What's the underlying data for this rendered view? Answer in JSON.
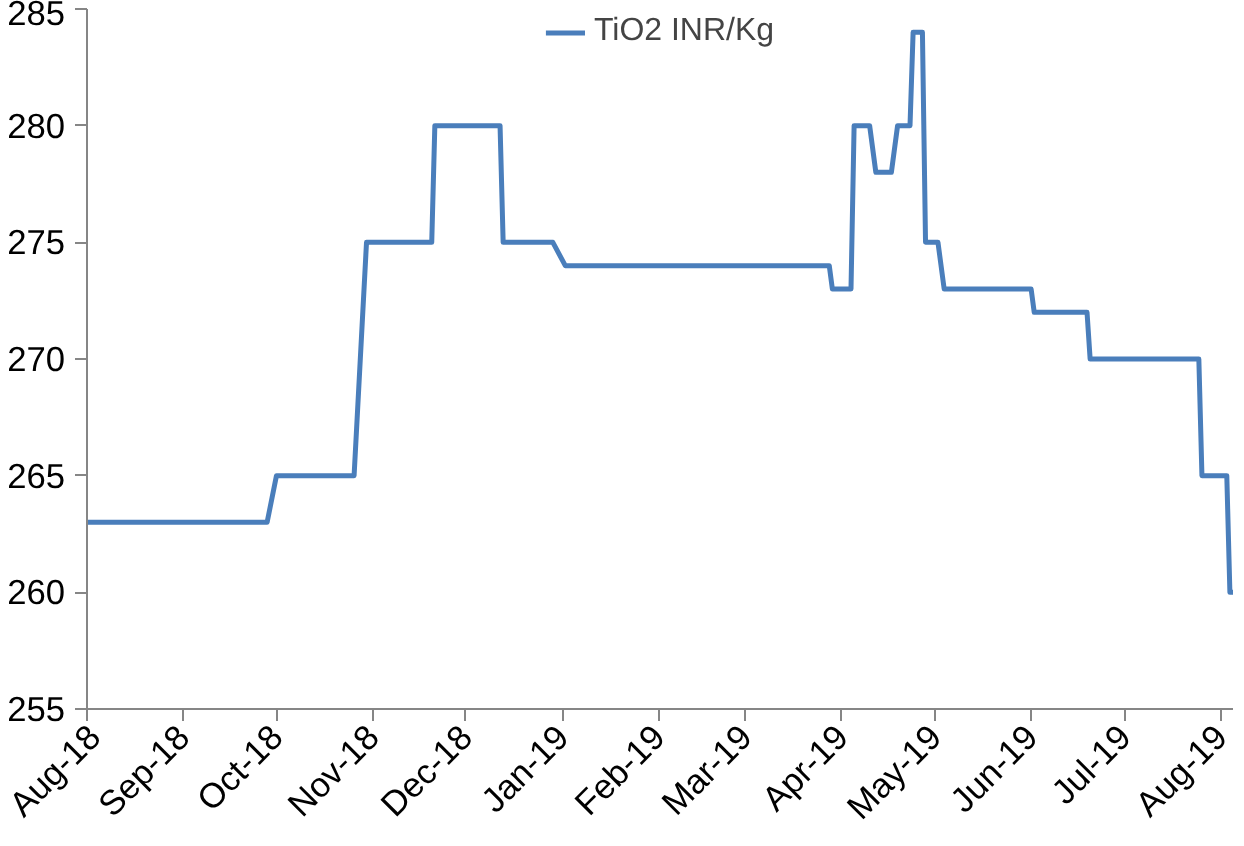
{
  "chart_data": {
    "type": "line",
    "x": [
      "2018-08-01",
      "2018-09-28",
      "2018-10-01",
      "2018-10-26",
      "2018-10-30",
      "2018-11-20",
      "2018-11-21",
      "2018-12-12",
      "2018-12-13",
      "2018-12-29",
      "2019-01-02",
      "2019-03-28",
      "2019-03-29",
      "2019-04-04",
      "2019-04-05",
      "2019-04-10",
      "2019-04-12",
      "2019-04-17",
      "2019-04-19",
      "2019-04-23",
      "2019-04-24",
      "2019-04-27",
      "2019-04-28",
      "2019-05-02",
      "2019-05-04",
      "2019-06-01",
      "2019-06-02",
      "2019-06-19",
      "2019-06-20",
      "2019-07-25",
      "2019-07-26",
      "2019-08-03",
      "2019-08-04",
      "2019-08-05"
    ],
    "series": [
      {
        "name": "TiO2 INR/Kg",
        "color": "#4a7ebb",
        "values": [
          263,
          263,
          265,
          265,
          275,
          275,
          280,
          280,
          275,
          275,
          274,
          274,
          273,
          273,
          280,
          280,
          278,
          278,
          280,
          280,
          284,
          284,
          275,
          275,
          273,
          273,
          272,
          272,
          270,
          270,
          265,
          265,
          260,
          260
        ]
      }
    ],
    "xlim": [
      "2018-08-01",
      "2019-08-05"
    ],
    "xticks": [
      {
        "value": "2018-08-01",
        "label": "Aug-18"
      },
      {
        "value": "2018-09-01",
        "label": "Sep-18"
      },
      {
        "value": "2018-10-01",
        "label": "Oct-18"
      },
      {
        "value": "2018-11-01",
        "label": "Nov-18"
      },
      {
        "value": "2018-12-01",
        "label": "Dec-18"
      },
      {
        "value": "2019-01-01",
        "label": "Jan-19"
      },
      {
        "value": "2019-02-01",
        "label": "Feb-19"
      },
      {
        "value": "2019-03-01",
        "label": "Mar-19"
      },
      {
        "value": "2019-04-01",
        "label": "Apr-19"
      },
      {
        "value": "2019-05-01",
        "label": "May-19"
      },
      {
        "value": "2019-06-01",
        "label": "Jun-19"
      },
      {
        "value": "2019-07-01",
        "label": "Jul-19"
      },
      {
        "value": "2019-08-01",
        "label": "Aug-19"
      }
    ],
    "ylim": [
      255,
      285
    ],
    "yticks": [
      255,
      260,
      265,
      270,
      275,
      280,
      285
    ],
    "grid": false,
    "legend": "top",
    "line_style": "solid"
  }
}
